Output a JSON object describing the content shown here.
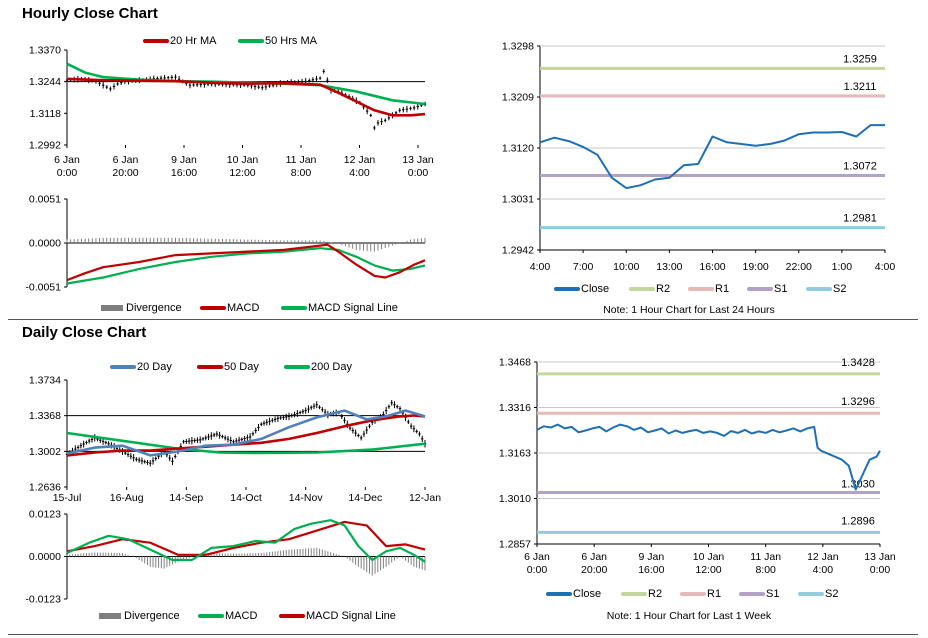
{
  "sections": {
    "hourly_title": "Hourly Close Chart",
    "daily_title": "Daily Close Chart"
  },
  "chart_data": [
    {
      "type": "line",
      "panel": "hourly-price",
      "legend": [
        {
          "name": "20 Hr MA",
          "color": "#c00000"
        },
        {
          "name": "50 Hrs MA",
          "color": "#00b050"
        }
      ],
      "y_ticks": [
        "1.3370",
        "1.3244",
        "1.3118",
        "1.2992"
      ],
      "ylim": [
        1.2992,
        1.337
      ],
      "x_ticks": [
        [
          "6 Jan",
          "0:00"
        ],
        [
          "6 Jan",
          "20:00"
        ],
        [
          "9 Jan",
          "16:00"
        ],
        [
          "10 Jan",
          "12:00"
        ],
        [
          "11 Jan",
          "8:00"
        ],
        [
          "12 Jan",
          "4:00"
        ],
        [
          "13 Jan",
          "0:00"
        ]
      ],
      "x_count": 100,
      "series": [
        {
          "name": "20 Hr MA",
          "color": "#c00000",
          "x": [
            0,
            10,
            20,
            30,
            40,
            50,
            60,
            70,
            75,
            80,
            85,
            90,
            95,
            99
          ],
          "values": [
            1.3255,
            1.325,
            1.3248,
            1.3246,
            1.324,
            1.3236,
            1.3238,
            1.3232,
            1.32,
            1.3165,
            1.313,
            1.311,
            1.311,
            1.3115
          ]
        },
        {
          "name": "50 Hrs MA",
          "color": "#00b050",
          "x": [
            0,
            5,
            10,
            20,
            30,
            40,
            50,
            60,
            70,
            80,
            90,
            99
          ],
          "values": [
            1.3315,
            1.328,
            1.3262,
            1.3252,
            1.3246,
            1.3244,
            1.324,
            1.3236,
            1.323,
            1.3205,
            1.317,
            1.3155
          ]
        },
        {
          "name": "price",
          "color": "#000000",
          "x": [
            0,
            4,
            8,
            12,
            14,
            16,
            20,
            26,
            30,
            32,
            34,
            40,
            50,
            54,
            60,
            66,
            70,
            71,
            72,
            73,
            75,
            78,
            81,
            84,
            85,
            86,
            88,
            92,
            96,
            99
          ],
          "values": [
            1.325,
            1.3255,
            1.3245,
            1.3215,
            1.3235,
            1.3245,
            1.325,
            1.3258,
            1.3262,
            1.3245,
            1.323,
            1.3235,
            1.323,
            1.322,
            1.324,
            1.3245,
            1.3258,
            1.3285,
            1.325,
            1.321,
            1.3205,
            1.3185,
            1.316,
            1.311,
            1.306,
            1.308,
            1.309,
            1.313,
            1.314,
            1.3155
          ]
        }
      ]
    },
    {
      "type": "line",
      "panel": "hourly-macd",
      "legend": [
        {
          "name": "Divergence",
          "color": "#7f7f7f",
          "kind": "bar"
        },
        {
          "name": "MACD",
          "color": "#c00000",
          "kind": "line"
        },
        {
          "name": "MACD Signal Line",
          "color": "#00b050",
          "kind": "line"
        }
      ],
      "y_ticks": [
        "0.0051",
        "0.0000",
        "-0.0051"
      ],
      "ylim": [
        -0.0051,
        0.0051
      ],
      "x_count": 100,
      "series": [
        {
          "name": "MACD",
          "color": "#c00000",
          "x": [
            0,
            5,
            10,
            20,
            30,
            40,
            50,
            60,
            70,
            72,
            75,
            80,
            85,
            88,
            92,
            96,
            99
          ],
          "values": [
            -0.0043,
            -0.0035,
            -0.0028,
            -0.0022,
            -0.0014,
            -0.0012,
            -0.001,
            -0.0008,
            -0.0003,
            -0.0002,
            -0.001,
            -0.0025,
            -0.0038,
            -0.004,
            -0.0034,
            -0.0025,
            -0.002
          ]
        },
        {
          "name": "MACD Signal Line",
          "color": "#00b050",
          "x": [
            0,
            10,
            20,
            30,
            40,
            50,
            60,
            70,
            75,
            80,
            85,
            90,
            95,
            99
          ],
          "values": [
            -0.0047,
            -0.004,
            -0.003,
            -0.0022,
            -0.0016,
            -0.0012,
            -0.001,
            -0.0006,
            -0.0008,
            -0.0016,
            -0.0026,
            -0.0032,
            -0.003,
            -0.0026
          ]
        },
        {
          "name": "Divergence",
          "color": "#7f7f7f",
          "x": [
            0,
            10,
            20,
            30,
            40,
            50,
            60,
            70,
            75,
            80,
            85,
            90,
            95,
            99
          ],
          "values": [
            0.0004,
            0.0006,
            0.0006,
            0.0006,
            0.0005,
            0.0004,
            0.0003,
            0.0003,
            -0.0001,
            -0.0008,
            -0.001,
            -0.0003,
            0.0004,
            0.0006
          ]
        }
      ]
    },
    {
      "type": "line",
      "panel": "hourly-levels",
      "y_ticks": [
        "1.3298",
        "1.3209",
        "1.3120",
        "1.3031",
        "1.2942"
      ],
      "ylim": [
        1.2942,
        1.3298
      ],
      "x_ticks": [
        "4:00",
        "7:00",
        "10:00",
        "13:00",
        "16:00",
        "19:00",
        "22:00",
        "1:00",
        "4:00"
      ],
      "x_count": 25,
      "levels": [
        {
          "name": "R2",
          "value": 1.3259,
          "label": "1.3259",
          "color": "#c3d69b"
        },
        {
          "name": "R1",
          "value": 1.3211,
          "label": "1.3211",
          "color": "#e6b9b8"
        },
        {
          "name": "S1",
          "value": 1.3072,
          "label": "1.3072",
          "color": "#b3a2c7"
        },
        {
          "name": "S2",
          "value": 1.2981,
          "label": "1.2981",
          "color": "#93cddd"
        }
      ],
      "series": [
        {
          "name": "Close",
          "color": "#1f6fb5",
          "x": [
            0,
            1,
            2,
            3,
            4,
            5,
            6,
            7,
            8,
            9,
            10,
            11,
            12,
            13,
            14,
            15,
            16,
            17,
            18,
            19,
            20,
            21,
            22,
            23,
            24
          ],
          "values": [
            1.313,
            1.3138,
            1.3132,
            1.3122,
            1.3108,
            1.3068,
            1.305,
            1.3055,
            1.3065,
            1.3068,
            1.309,
            1.3092,
            1.314,
            1.313,
            1.3127,
            1.3124,
            1.3127,
            1.3133,
            1.3144,
            1.3147,
            1.3147,
            1.3148,
            1.314,
            1.316,
            1.316
          ]
        }
      ],
      "legend": [
        {
          "name": "Close",
          "color": "#1f6fb5"
        },
        {
          "name": "R2",
          "color": "#c3d69b"
        },
        {
          "name": "R1",
          "color": "#e6b9b8"
        },
        {
          "name": "S1",
          "color": "#b3a2c7"
        },
        {
          "name": "S2",
          "color": "#93cddd"
        }
      ],
      "note": "Note: 1 Hour Chart for Last 24 Hours"
    },
    {
      "type": "line",
      "panel": "daily-price",
      "legend": [
        {
          "name": "20 Day",
          "color": "#4f81bd"
        },
        {
          "name": "50 Day",
          "color": "#c00000"
        },
        {
          "name": "200 Day",
          "color": "#00b050"
        }
      ],
      "y_ticks": [
        "1.3734",
        "1.3368",
        "1.3002",
        "1.2636"
      ],
      "ylim": [
        1.2636,
        1.3734
      ],
      "x_ticks": [
        "15-Jul",
        "16-Aug",
        "14-Sep",
        "14-Oct",
        "14-Nov",
        "14-Dec",
        "12-Jan"
      ],
      "x_count": 130,
      "series": [
        {
          "name": "20 Day",
          "color": "#4f81bd",
          "x": [
            0,
            10,
            20,
            30,
            40,
            50,
            60,
            70,
            80,
            90,
            100,
            108,
            115,
            122,
            129
          ],
          "values": [
            1.298,
            1.304,
            1.306,
            1.296,
            1.3,
            1.306,
            1.307,
            1.313,
            1.325,
            1.335,
            1.342,
            1.333,
            1.336,
            1.342,
            1.336
          ]
        },
        {
          "name": "50 Day",
          "color": "#c00000",
          "x": [
            0,
            10,
            20,
            30,
            40,
            50,
            60,
            70,
            80,
            90,
            100,
            110,
            120,
            125,
            129
          ],
          "values": [
            1.296,
            1.299,
            1.301,
            1.301,
            1.303,
            1.305,
            1.307,
            1.309,
            1.313,
            1.319,
            1.326,
            1.332,
            1.336,
            1.337,
            1.336
          ]
        },
        {
          "name": "200 Day",
          "color": "#00b050",
          "x": [
            0,
            20,
            40,
            55,
            70,
            90,
            110,
            129
          ],
          "values": [
            1.319,
            1.311,
            1.303,
            1.299,
            1.2985,
            1.299,
            1.302,
            1.308
          ]
        },
        {
          "name": "price",
          "color": "#000000",
          "x": [
            0,
            5,
            10,
            15,
            20,
            25,
            30,
            35,
            38,
            42,
            48,
            54,
            60,
            66,
            70,
            76,
            80,
            86,
            90,
            94,
            98,
            102,
            106,
            110,
            114,
            117,
            120,
            124,
            127,
            129
          ],
          "values": [
            1.297,
            1.306,
            1.314,
            1.308,
            1.3,
            1.292,
            1.288,
            1.3,
            1.29,
            1.31,
            1.312,
            1.318,
            1.31,
            1.315,
            1.328,
            1.334,
            1.336,
            1.342,
            1.348,
            1.338,
            1.34,
            1.324,
            1.314,
            1.33,
            1.338,
            1.35,
            1.344,
            1.326,
            1.318,
            1.308
          ]
        }
      ]
    },
    {
      "type": "line",
      "panel": "daily-macd",
      "legend": [
        {
          "name": "Divergence",
          "color": "#7f7f7f",
          "kind": "bar"
        },
        {
          "name": "MACD",
          "color": "#00b050",
          "kind": "line"
        },
        {
          "name": "MACD Signal Line",
          "color": "#c00000",
          "kind": "line"
        }
      ],
      "y_ticks": [
        "0.0123",
        "0.0000",
        "-0.0123"
      ],
      "ylim": [
        -0.0123,
        0.0123
      ],
      "x_count": 130,
      "series": [
        {
          "name": "MACD",
          "color": "#00b050",
          "x": [
            0,
            8,
            15,
            22,
            30,
            38,
            45,
            52,
            60,
            68,
            75,
            82,
            88,
            95,
            100,
            105,
            110,
            115,
            120,
            125,
            129
          ],
          "values": [
            0.001,
            0.004,
            0.006,
            0.005,
            0.002,
            -0.001,
            -0.001,
            0.0025,
            0.003,
            0.0045,
            0.004,
            0.008,
            0.0095,
            0.0105,
            0.009,
            0.003,
            -0.001,
            0.0015,
            0.0025,
            0.0005,
            -0.0015
          ]
        },
        {
          "name": "MACD Signal Line",
          "color": "#c00000",
          "x": [
            0,
            10,
            20,
            30,
            40,
            50,
            60,
            70,
            80,
            90,
            100,
            108,
            115,
            122,
            129
          ],
          "values": [
            0.0015,
            0.003,
            0.005,
            0.004,
            0.0005,
            0.0005,
            0.0025,
            0.004,
            0.005,
            0.0075,
            0.01,
            0.009,
            0.003,
            0.0035,
            0.002
          ]
        },
        {
          "name": "Divergence",
          "color": "#7f7f7f",
          "x": [
            0,
            10,
            20,
            25,
            30,
            35,
            40,
            50,
            60,
            70,
            80,
            90,
            100,
            105,
            110,
            115,
            120,
            125,
            129
          ],
          "values": [
            0.0005,
            0.0012,
            0.001,
            -0.0005,
            -0.003,
            -0.0035,
            -0.0015,
            0.001,
            0.0008,
            0.001,
            0.002,
            0.0025,
            0.0,
            -0.003,
            -0.0055,
            -0.003,
            0.0,
            -0.003,
            -0.004
          ]
        }
      ]
    },
    {
      "type": "line",
      "panel": "daily-levels",
      "y_ticks": [
        "1.3468",
        "1.3316",
        "1.3163",
        "1.3010",
        "1.2857"
      ],
      "ylim": [
        1.2857,
        1.3468
      ],
      "x_ticks": [
        [
          "6 Jan",
          "0:00"
        ],
        [
          "6 Jan",
          "20:00"
        ],
        [
          "9 Jan",
          "16:00"
        ],
        [
          "10 Jan",
          "12:00"
        ],
        [
          "11 Jan",
          "8:00"
        ],
        [
          "12 Jan",
          "4:00"
        ],
        [
          "13 Jan",
          "0:00"
        ]
      ],
      "x_count": 100,
      "levels": [
        {
          "name": "R2",
          "value": 1.3428,
          "label": "1.3428",
          "color": "#c3d69b"
        },
        {
          "name": "R1",
          "value": 1.3296,
          "label": "1.3296",
          "color": "#e6b9b8"
        },
        {
          "name": "S1",
          "value": 1.303,
          "label": "1.3030",
          "color": "#b3a2c7"
        },
        {
          "name": "S2",
          "value": 1.2896,
          "label": "1.2896",
          "color": "#93cddd"
        }
      ],
      "series": [
        {
          "name": "Close",
          "color": "#1f6fb5",
          "x": [
            0,
            2,
            4,
            6,
            8,
            10,
            12,
            14,
            16,
            18,
            20,
            22,
            24,
            26,
            28,
            30,
            32,
            34,
            36,
            38,
            40,
            42,
            44,
            46,
            48,
            50,
            52,
            54,
            56,
            58,
            60,
            62,
            64,
            66,
            68,
            70,
            72,
            74,
            76,
            78,
            80,
            81,
            82,
            84,
            86,
            88,
            90,
            92,
            94,
            96,
            98,
            99
          ],
          "values": [
            1.324,
            1.3252,
            1.3248,
            1.3258,
            1.3245,
            1.325,
            1.3232,
            1.3238,
            1.3245,
            1.325,
            1.3235,
            1.3248,
            1.3258,
            1.3252,
            1.324,
            1.3248,
            1.3232,
            1.3238,
            1.3245,
            1.3228,
            1.3238,
            1.323,
            1.3236,
            1.324,
            1.323,
            1.3235,
            1.323,
            1.322,
            1.3236,
            1.323,
            1.324,
            1.3228,
            1.3235,
            1.323,
            1.324,
            1.3232,
            1.3238,
            1.3245,
            1.3235,
            1.3245,
            1.325,
            1.318,
            1.317,
            1.316,
            1.315,
            1.314,
            1.312,
            1.304,
            1.309,
            1.314,
            1.315,
            1.317
          ]
        }
      ],
      "legend": [
        {
          "name": "Close",
          "color": "#1f6fb5"
        },
        {
          "name": "R2",
          "color": "#c3d69b"
        },
        {
          "name": "R1",
          "color": "#e6b9b8"
        },
        {
          "name": "S1",
          "color": "#b3a2c7"
        },
        {
          "name": "S2",
          "color": "#93cddd"
        }
      ],
      "note": "Note: 1 Hour Chart for  Last 1 Week"
    }
  ]
}
